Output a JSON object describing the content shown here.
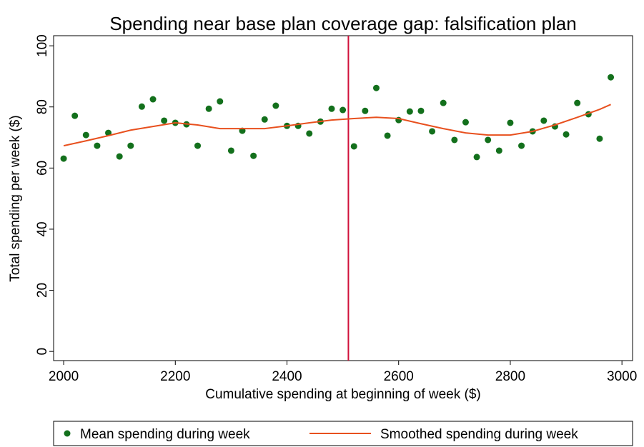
{
  "chart_data": {
    "type": "scatter",
    "title": "Spending near base plan coverage gap: falsification plan",
    "x_label": "Cumulative spending at beginning of week ($)",
    "y_label": "Total spending per week ($)",
    "xlim": [
      1982,
      3019
    ],
    "ylim": [
      -3,
      103.3
    ],
    "xticks": [
      2000,
      2200,
      2400,
      2600,
      2800,
      3000
    ],
    "yticks": [
      0,
      20,
      40,
      60,
      80,
      100
    ],
    "vline": {
      "value": 2510,
      "color": "#d0103a"
    },
    "series": [
      {
        "name": "Mean spending during week",
        "color": "#13701c",
        "kind": "points",
        "x": [
          2000,
          2020,
          2040,
          2060,
          2080,
          2100,
          2120,
          2140,
          2160,
          2180,
          2200,
          2220,
          2240,
          2260,
          2280,
          2300,
          2320,
          2340,
          2360,
          2380,
          2400,
          2420,
          2440,
          2460,
          2480,
          2500,
          2520,
          2540,
          2560,
          2580,
          2600,
          2620,
          2640,
          2660,
          2680,
          2700,
          2720,
          2740,
          2760,
          2780,
          2800,
          2820,
          2840,
          2860,
          2880,
          2900,
          2920,
          2940,
          2960,
          2980
        ],
        "values": [
          63.1,
          77.1,
          70.8,
          67.3,
          71.5,
          63.8,
          67.3,
          80.1,
          82.5,
          75.5,
          74.8,
          74.3,
          67.3,
          79.4,
          81.8,
          65.7,
          72.2,
          64.0,
          75.9,
          80.4,
          73.8,
          73.8,
          71.3,
          75.2,
          79.4,
          79.0,
          67.1,
          78.7,
          86.2,
          70.6,
          75.7,
          78.5,
          78.7,
          72.0,
          81.3,
          69.2,
          75.0,
          63.6,
          69.2,
          65.7,
          74.8,
          67.3,
          72.0,
          75.5,
          73.6,
          71.0,
          81.3,
          77.6,
          69.6,
          89.7
        ]
      },
      {
        "name": "Smoothed spending during week",
        "color": "#e8501e",
        "kind": "line",
        "x": [
          2000,
          2040,
          2080,
          2120,
          2160,
          2200,
          2240,
          2280,
          2320,
          2360,
          2400,
          2440,
          2480,
          2520,
          2560,
          2600,
          2640,
          2680,
          2720,
          2760,
          2800,
          2840,
          2880,
          2920,
          2960,
          2980
        ],
        "values": [
          67.3,
          68.9,
          70.6,
          72.4,
          73.6,
          74.8,
          74.1,
          72.9,
          72.9,
          72.9,
          73.8,
          74.8,
          75.7,
          76.2,
          76.6,
          76.2,
          74.5,
          72.9,
          71.5,
          70.8,
          70.8,
          72.0,
          74.1,
          76.6,
          79.2,
          80.8
        ]
      }
    ]
  }
}
